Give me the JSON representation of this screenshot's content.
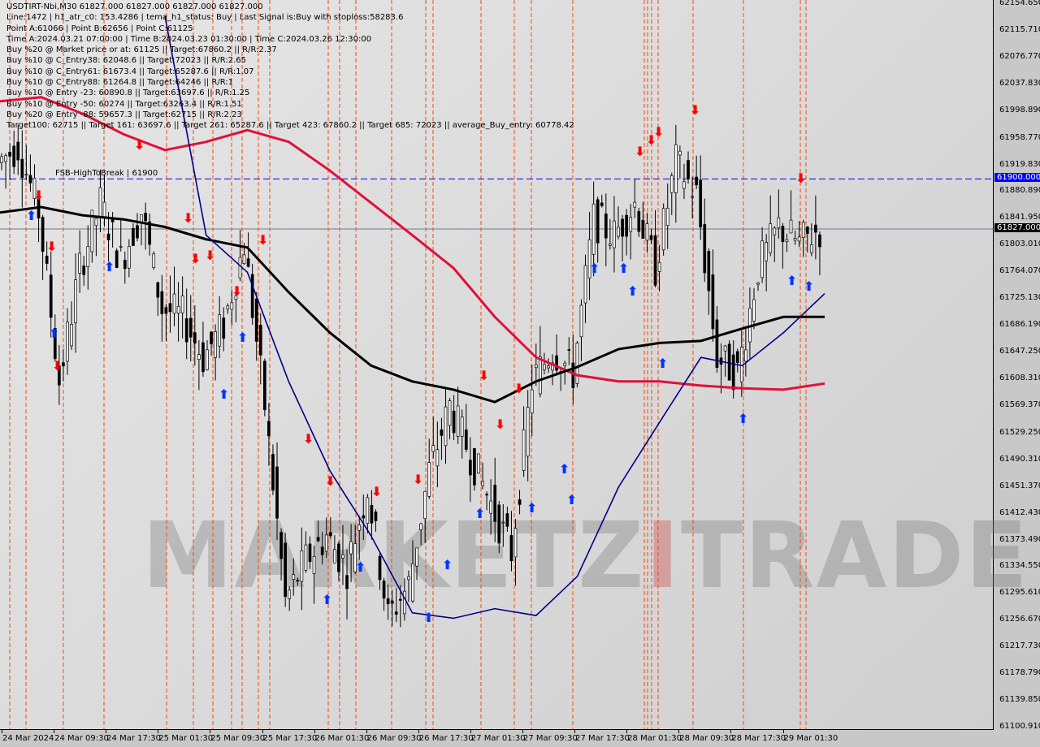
{
  "header": {
    "lines": [
      "USDTIRT-Nbi,M30  61827.000 61827.000 61827.000 61827.000",
      "Line:1472 | h1_atr_c0: 153.4286 | tema_h1_status: Buy | Last Signal is:Buy with stoploss:58283.6",
      "Point A:61066 | Point B:62656 | Point C:61125",
      "Time A:2024.03.21 07:00:00 | Time B:2024.03.23 01:30:00 | Time C:2024.03.26 12:30:00",
      "Buy %20 @ Market price or at: 61125 || Target:67860.2 || R/R:2.37",
      "Buy %10 @ C_Entry38: 62048.6 || Target:72023 || R/R:2.65",
      "Buy %10 @ C_Entry61: 61673.4 || Target:65287.6 || R/R:1.07",
      "Buy %10 @ C_Entry88: 61264.8 || Target:64246 || R/R:1",
      "Buy %10 @ Entry -23: 60890.8 || Target:63697.6 || R/R:1.25",
      "Buy %10 @ Entry -50: 60274 || Target:63263.4 || R/R:1.51",
      "Buy %20 @ Entry -88: 59657.3 || Target:62715 || R/R:2.23",
      "Target100: 62715 || Target 161: 63697.6 || Target 261: 65287.6 || Target 423: 67860.2 || Target 685: 72023 || average_Buy_entry: 60778.42"
    ],
    "fsb_label": "FSB-HighToBreak | 61900"
  },
  "watermark": "MARKETZITRADE",
  "colors": {
    "bull": "#000000",
    "bear": "#000000",
    "red_ma": "#e0103a",
    "black_ma": "#000000",
    "blue_ma": "#00008b",
    "signal_lines": "#ff4500",
    "fsb_line": "#0000ff",
    "fsb_badge": "#0000ff",
    "price_badge": "#000000"
  },
  "chart_data": {
    "type": "candlestick",
    "symbol": "USDTIRT-Nbi",
    "timeframe": "M30",
    "ylim": [
      61100.91,
      62154.65
    ],
    "y_ticks": [
      "62154.650",
      "62115.710",
      "62076.770",
      "62037.830",
      "61998.890",
      "61958.770",
      "61919.830",
      "61880.890",
      "61841.950",
      "61803.010",
      "61764.070",
      "61725.130",
      "61686.190",
      "61647.250",
      "61608.310",
      "61569.370",
      "61529.250",
      "61490.310",
      "61451.370",
      "61412.430",
      "61373.490",
      "61334.550",
      "61295.610",
      "61256.670",
      "61217.730",
      "61178.790",
      "61139.850",
      "61100.910"
    ],
    "x_ticks": [
      "24 Mar 2024",
      "24 Mar 09:30",
      "24 Mar 17:30",
      "25 Mar 01:30",
      "25 Mar 09:30",
      "25 Mar 17:30",
      "26 Mar 01:30",
      "26 Mar 09:30",
      "26 Mar 17:30",
      "27 Mar 01:30",
      "27 Mar 09:30",
      "27 Mar 17:30",
      "28 Mar 01:30",
      "28 Mar 09:30",
      "28 Mar 17:30",
      "29 Mar 01:30"
    ],
    "close_approx": [
      61924,
      61948,
      61853,
      61605,
      61770,
      61865,
      61782,
      61853,
      61711,
      61700,
      61640,
      61687,
      61806,
      61569,
      61285,
      61345,
      61380,
      61333,
      61451,
      61262,
      61309,
      61475,
      61569,
      61498,
      61427,
      61356,
      61605,
      61652,
      61617,
      61841,
      61818,
      61865,
      61770,
      61924,
      61877,
      61640,
      61617,
      61770,
      61830,
      61806,
      61827
    ],
    "series": [
      {
        "values": [
          62013,
          62019,
          61995,
          61965,
          61942,
          61954,
          61971,
          61954,
          61912,
          61865,
          61818,
          61770,
          61699,
          61640,
          61614,
          61605,
          61605,
          61599,
          61595,
          61593,
          61602
        ]
      },
      {
        "values": [
          61851,
          61859,
          61847,
          61841,
          61830,
          61812,
          61800,
          61735,
          61676,
          61628,
          61605,
          61593,
          61575,
          61605,
          61626,
          61652,
          61661,
          61664,
          61682,
          61699,
          61699
        ]
      },
      {
        "values": [
          null,
          null,
          null,
          null,
          62137,
          61818,
          61764,
          61605,
          61475,
          61380,
          61268,
          61260,
          61274,
          61264,
          61321,
          61451,
          61546,
          61640,
          61628,
          61676,
          61733
        ]
      }
    ],
    "hlines": [
      {
        "price": 61900,
        "label": "61900.000",
        "style": "dashed"
      },
      {
        "price": 61827,
        "label": "61827.000",
        "style": "solid"
      }
    ],
    "grid": false
  }
}
